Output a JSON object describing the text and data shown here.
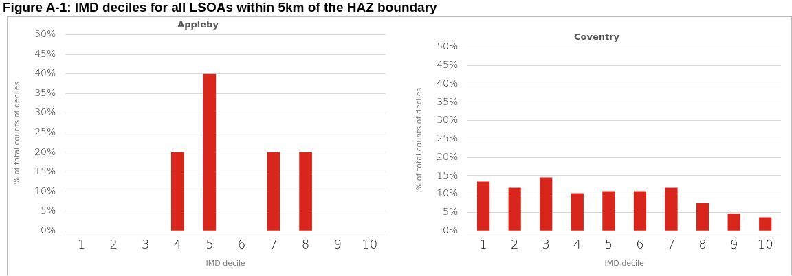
{
  "chart_data": [
    {
      "type": "bar",
      "title": "Appleby",
      "annotations": [
        "Figure A-1: IMD deciles for all LSOAs within 5km of the HAZ boundary"
      ],
      "xlabel": "IMD decile",
      "ylabel": "% of total counts of deciles",
      "categories": [
        "1",
        "2",
        "3",
        "4",
        "5",
        "6",
        "7",
        "8",
        "9",
        "10"
      ],
      "series": [
        {
          "color": "#d9261c",
          "values": [
            0,
            0,
            0,
            20,
            40,
            0,
            20,
            20,
            0,
            0
          ]
        }
      ],
      "ylim": [
        0,
        50
      ],
      "yticks": [
        {
          "value": 0,
          "label": "0%"
        },
        {
          "value": 5,
          "label": "5%"
        },
        {
          "value": 10,
          "label": "10%"
        },
        {
          "value": 15,
          "label": "15%"
        },
        {
          "value": 20,
          "label": "20%"
        },
        {
          "value": 25,
          "label": "25%"
        },
        {
          "value": 30,
          "label": "30%"
        },
        {
          "value": 35,
          "label": "35%"
        },
        {
          "value": 40,
          "label": "40%"
        },
        {
          "value": 45,
          "label": "45%"
        },
        {
          "value": 50,
          "label": "50%"
        }
      ],
      "grid": "y",
      "legend": false
    },
    {
      "type": "bar",
      "title": "Coventry",
      "xlabel": "IMD decile",
      "ylabel": "% of total counts of deciles",
      "categories": [
        "1",
        "2",
        "3",
        "4",
        "5",
        "6",
        "7",
        "8",
        "9",
        "10"
      ],
      "series": [
        {
          "color": "#d9261c",
          "values": [
            13.4,
            11.7,
            14.5,
            10.2,
            10.8,
            10.8,
            11.7,
            7.5,
            4.7,
            3.7
          ]
        }
      ],
      "ylim": [
        0,
        50
      ],
      "yticks": [
        {
          "value": 0,
          "label": "0%"
        },
        {
          "value": 5,
          "label": "5%"
        },
        {
          "value": 10,
          "label": "10%"
        },
        {
          "value": 15,
          "label": "15%"
        },
        {
          "value": 20,
          "label": "20%"
        },
        {
          "value": 25,
          "label": "25%"
        },
        {
          "value": 30,
          "label": "30%"
        },
        {
          "value": 35,
          "label": "35%"
        },
        {
          "value": 40,
          "label": "40%"
        },
        {
          "value": 45,
          "label": "45%"
        },
        {
          "value": 50,
          "label": "50%"
        }
      ],
      "grid": "y",
      "legend": false
    }
  ]
}
